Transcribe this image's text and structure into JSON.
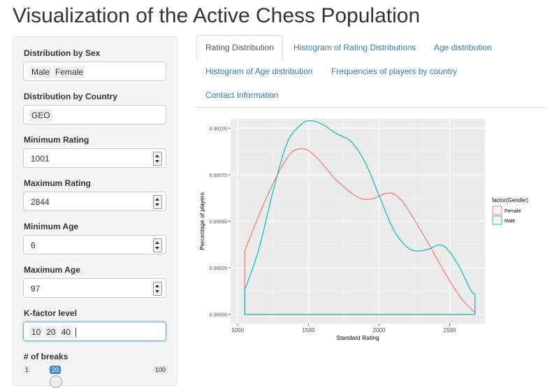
{
  "page": {
    "title": "Visualization of the Active Chess Population"
  },
  "sidebar": {
    "sex": {
      "label": "Distribution by Sex",
      "values": [
        "Male",
        "Female"
      ]
    },
    "country": {
      "label": "Distribution by Country",
      "values": [
        "GEO"
      ]
    },
    "min_rating": {
      "label": "Minimum Rating",
      "value": "1001"
    },
    "max_rating": {
      "label": "Maximum Rating",
      "value": "2844"
    },
    "min_age": {
      "label": "Minimum Age",
      "value": "6"
    },
    "max_age": {
      "label": "Maximum Age",
      "value": "97"
    },
    "kfactor": {
      "label": "K-factor level",
      "values": [
        "10",
        "20",
        "40"
      ]
    },
    "breaks": {
      "label": "# of breaks",
      "min": "1",
      "value": "20",
      "max": "100"
    }
  },
  "tabs": [
    {
      "label": "Rating Distribution",
      "active": true
    },
    {
      "label": "Histogram of Rating Distributions"
    },
    {
      "label": "Age distribution"
    },
    {
      "label": "Histogram of Age distribution"
    },
    {
      "label": "Frequencies of players by country"
    },
    {
      "label": "Contact Information"
    }
  ],
  "chart_data": {
    "type": "area",
    "xlabel": "Standard Rating",
    "ylabel": "Percentage of players",
    "xlim": [
      950,
      2750
    ],
    "ylim": [
      -5e-05,
      0.00105
    ],
    "xticks": [
      1000,
      1500,
      2000,
      2500
    ],
    "xtick_labels": [
      "1000",
      "1500",
      "2000",
      "2500"
    ],
    "yticks": [
      0,
      0.00025,
      0.0005,
      0.00075,
      0.001
    ],
    "ytick_labels": [
      "0.00000",
      "0.00025",
      "0.00050",
      "0.00075",
      "0.00100"
    ],
    "grid": true,
    "legend": {
      "title": "factor(Gender)",
      "position": "right"
    },
    "series": [
      {
        "name": "Female",
        "color": "#F8766D",
        "x": [
          1050,
          1200,
          1350,
          1450,
          1550,
          1700,
          1850,
          1950,
          2050,
          2120,
          2200,
          2350,
          2500,
          2600,
          2680
        ],
        "y": [
          0.00034,
          0.00062,
          0.00084,
          0.00089,
          0.00085,
          0.00072,
          0.00063,
          0.00062,
          0.00065,
          0.00064,
          0.00057,
          0.00038,
          0.00018,
          7e-05,
          1e-05
        ]
      },
      {
        "name": "Male",
        "color": "#00BFC4",
        "x": [
          1050,
          1150,
          1250,
          1350,
          1450,
          1520,
          1600,
          1700,
          1800,
          1900,
          2000,
          2100,
          2200,
          2280,
          2350,
          2450,
          2550,
          2650,
          2680
        ],
        "y": [
          0.00013,
          0.00035,
          0.00066,
          0.00092,
          0.00102,
          0.00104,
          0.00102,
          0.00097,
          0.00093,
          0.00082,
          0.00064,
          0.00046,
          0.00036,
          0.00034,
          0.00035,
          0.00037,
          0.00028,
          0.00013,
          0.00011
        ]
      }
    ]
  }
}
